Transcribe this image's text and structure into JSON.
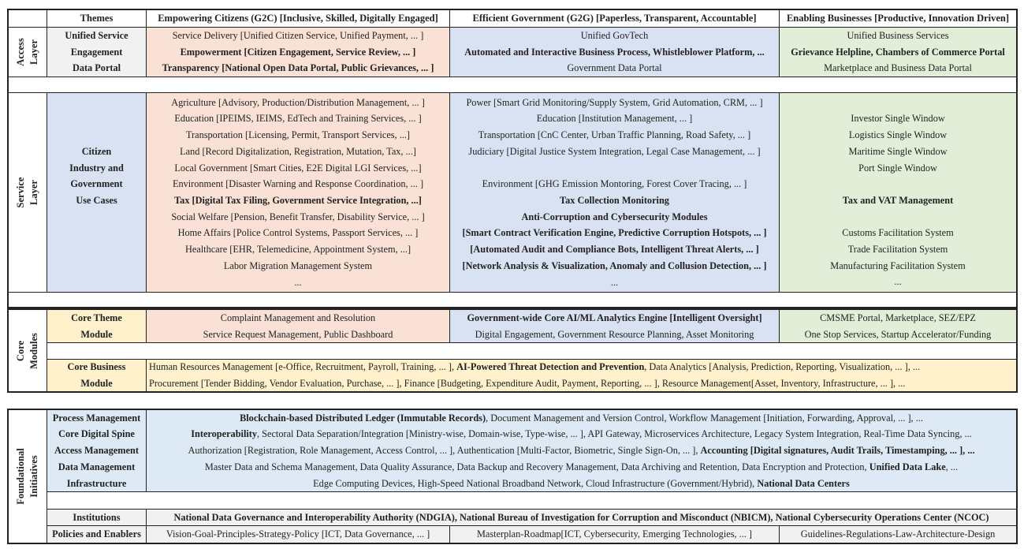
{
  "header": {
    "themes": "Themes",
    "g2c": "Empowering Citizens (G2C) [Inclusive, Skilled, Digitally Engaged]",
    "g2g": "Efficient Government (G2G) [Paperless, Transparent, Accountable]",
    "g2b": "Enabling Businesses [Productive, Innovation Driven]"
  },
  "colors": {
    "g2c": "#f9e2d5",
    "g2g": "#d9e2f2",
    "g2b": "#e3eed9",
    "neutral": "#f1f1f1",
    "core": "#fff1cc",
    "foundational": "#ddeaf5"
  },
  "access": {
    "label": [
      "Access",
      "Layer"
    ],
    "themes": [
      {
        "bold": "Unified Service"
      },
      {
        "bold": "Engagement"
      },
      {
        "bold": "Data Portal"
      }
    ],
    "g2c": [
      "Service Delivery [Unified Citizen Service, Unified Payment, ... ]",
      {
        "bold": "Empowerment [Citizen Engagement, Service Review, ... ]"
      },
      {
        "bold": "Transparency [National Open Data Portal, Public Grievances, ... ]"
      }
    ],
    "g2g": [
      "Unified GovTech",
      {
        "bold": "Automated and Interactive Business Process, Whistleblower Platform, ..."
      },
      "Government Data Portal"
    ],
    "g2b": [
      "Unified Business Services",
      {
        "bold": "Grievance Helpline, Chambers of Commerce Portal"
      },
      "Marketplace and Business Data Portal"
    ]
  },
  "service": {
    "label": [
      "Service",
      "Layer"
    ],
    "themes": [
      "",
      "",
      "",
      {
        "bold": "Citizen"
      },
      {
        "bold": "Industry and"
      },
      {
        "bold": "Government"
      },
      {
        "bold": "Use Cases"
      },
      "",
      "",
      "",
      "",
      ""
    ],
    "g2c": [
      "Agriculture [Advisory, Production/Distribution Management, ... ]",
      "Education [IPEIMS, IEIMS, EdTech and Training Services, ... ]",
      "Transportation [Licensing, Permit, Transport Services, ...]",
      "Land [Record Digitalization, Registration, Mutation, Tax, ...]",
      "Local Government [Smart Cities, E2E Digital LGI Services, ...]",
      "Environment [Disaster Warning and Response Coordination, ... ]",
      {
        "bold": "Tax [Digital Tax Filing, Government Service Integration, ...]"
      },
      "Social Welfare [Pension, Benefit Transfer, Disability Service, ... ]",
      "Home Affairs [Police Control Systems, Passport Services, ... ]",
      "Healthcare [EHR, Telemedicine, Appointment System, ...]",
      "Labor Migration Management System",
      "..."
    ],
    "g2g": [
      "Power [Smart Grid Monitoring/Supply System,  Grid Automation, CRM, ... ]",
      "Education [Institution Management, ... ]",
      "Transportation [CnC Center, Urban Traffic Planning, Road Safety, ... ]",
      "Judiciary [Digital Justice System Integration, Legal Case Management, ... ]",
      "",
      "Environment [GHG Emission Montoring, Forest Cover Tracing, ... ]",
      {
        "bold": "Tax Collection Monitoring"
      },
      {
        "bold": "Anti-Corruption and Cybersecurity Modules"
      },
      {
        "bold": "[Smart Contract Verification Engine, Predictive Corruption Hotspots, ... ]"
      },
      {
        "bold": "[Automated Audit and Compliance Bots, Intelligent Threat Alerts, ... ]"
      },
      {
        "bold": "[Network Analysis & Visualization, Anomaly and Collusion Detection, ... ]"
      },
      "..."
    ],
    "g2b": [
      "",
      "Investor Single Window",
      "Logistics Single Window",
      "Maritime Single Window",
      "Port Single Window",
      "",
      {
        "bold": "Tax and VAT Management"
      },
      "",
      "Customs Facilitation System",
      "Trade Facilitation System",
      "Manufacturing Facilitation System",
      "..."
    ]
  },
  "core": {
    "label": [
      "Core",
      "Modules"
    ],
    "theme_label": [
      {
        "bold": "Core Theme"
      },
      {
        "bold": "Module"
      }
    ],
    "g2c": [
      "Complaint Management and Resolution",
      "Service Request Management, Public Dashboard"
    ],
    "g2g": [
      {
        "bold": "Government-wide Core AI/ML Analytics Engine [Intelligent Oversight]"
      },
      "Digital Engagement, Government Resource Planning, Asset Monitoring"
    ],
    "g2b": [
      "CMSME Portal, Marketplace, SEZ/EPZ",
      "One Stop Services, Startup Accelerator/Funding"
    ],
    "business_label": [
      {
        "bold": "Core Business"
      },
      {
        "bold": "Module"
      }
    ],
    "business": [
      {
        "parts": [
          {
            "text": "Human Resources Management [e-Office, Recruitment, Payroll, Training, ... ], "
          },
          {
            "text": "AI-Powered Threat Detection and Prevention",
            "bold": true
          },
          {
            "text": ", Data Analytics [Analysis, Prediction, Reporting, Visualization, ... ], ..."
          }
        ]
      },
      "Procurement [Tender Bidding, Vendor Evaluation, Purchase, ... ], Finance [Budgeting, Expenditure Audit, Payment, Reporting, ... ], Resource Management[Asset, Inventory, Infrastructure, ... ], ..."
    ]
  },
  "foundational": {
    "label": [
      "Foundational",
      "Initiatives"
    ],
    "row_labels": [
      {
        "bold": "Process Management"
      },
      {
        "bold": "Core Digital Spine"
      },
      {
        "bold": "Access Management"
      },
      {
        "bold": "Data Management"
      },
      {
        "bold": "Infrastructure"
      }
    ],
    "rows": [
      {
        "parts": [
          {
            "text": "Blockchain-based Distributed Ledger (Immutable Records)",
            "bold": true
          },
          {
            "text": ", Document Management and Version Control, Workflow Management [Initiation, Forwarding, Approval, ... ], ..."
          }
        ]
      },
      {
        "parts": [
          {
            "text": "Interoperability",
            "bold": true
          },
          {
            "text": ", Sectoral Data Separation/Integration [Ministry-wise, Domain-wise, Type-wise, ... ], API Gateway, Microservices Architecture, Legacy System Integration, Real-Time Data Syncing, ..."
          }
        ]
      },
      {
        "parts": [
          {
            "text": "Authorization [Registration, Role Management, Access Control, ... ], Authentication [Multi-Factor, Biometric, Single Sign-On, ... ], "
          },
          {
            "text": "Accounting [Digital signatures, Audit Trails, Timestamping, ... ], ...",
            "bold": true
          }
        ]
      },
      {
        "parts": [
          {
            "text": "Master Data and Schema Management, Data Quality Assurance, Data Backup and Recovery Management, Data Archiving and Retention, Data Encryption and Protection, "
          },
          {
            "text": "Unified Data Lake",
            "bold": true
          },
          {
            "text": ", ..."
          }
        ]
      },
      {
        "parts": [
          {
            "text": "Edge Computing Devices, High-Speed National Broadband Network, Cloud Infrastructure (Government/Hybrid), "
          },
          {
            "text": "National Data Centers",
            "bold": true
          }
        ]
      }
    ],
    "institutions_label": [
      {
        "bold": "Institutions"
      }
    ],
    "institutions": [
      {
        "bold": "National Data Governance and Interoperability Authority (NDGIA), National Bureau of Investigation for Corruption and Misconduct (NBICM), National Cybersecurity Operations Center (NCOC)"
      }
    ],
    "policies_label": [
      {
        "bold": "Policies and Enablers"
      }
    ],
    "policies": [
      [
        "Vision-Goal-Principles-Strategy-Policy [ICT, Data Governance, ... ]"
      ],
      [
        "Masterplan-Roadmap[ICT, Cybersecurity, Emerging Technologies, ... ]"
      ],
      [
        "Guidelines-Regulations-Law-Architecture-Design"
      ]
    ]
  }
}
